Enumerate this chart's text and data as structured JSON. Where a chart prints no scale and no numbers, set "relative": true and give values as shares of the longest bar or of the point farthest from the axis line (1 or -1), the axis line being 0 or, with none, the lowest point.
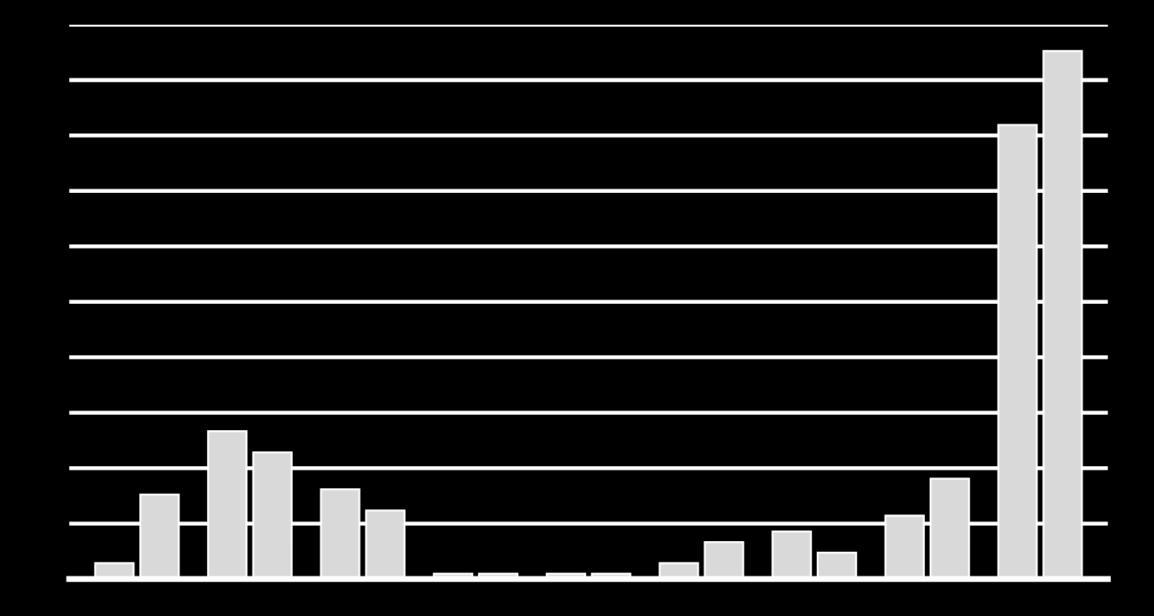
{
  "chart_data": {
    "type": "bar",
    "relative": true,
    "grid": "y",
    "categories": [
      null,
      null,
      null,
      null,
      null,
      null,
      null,
      null,
      null
    ],
    "series": [
      {
        "color": "#d9d9d9",
        "values": [
          0.03,
          0.28,
          0.17,
          0.01,
          0.01,
          0.03,
          0.09,
          0.12,
          0.86
        ]
      },
      {
        "color": "#d9d9d9",
        "values": [
          0.16,
          0.24,
          0.13,
          0.01,
          0.01,
          0.07,
          0.05,
          0.19,
          1.0
        ]
      }
    ]
  }
}
